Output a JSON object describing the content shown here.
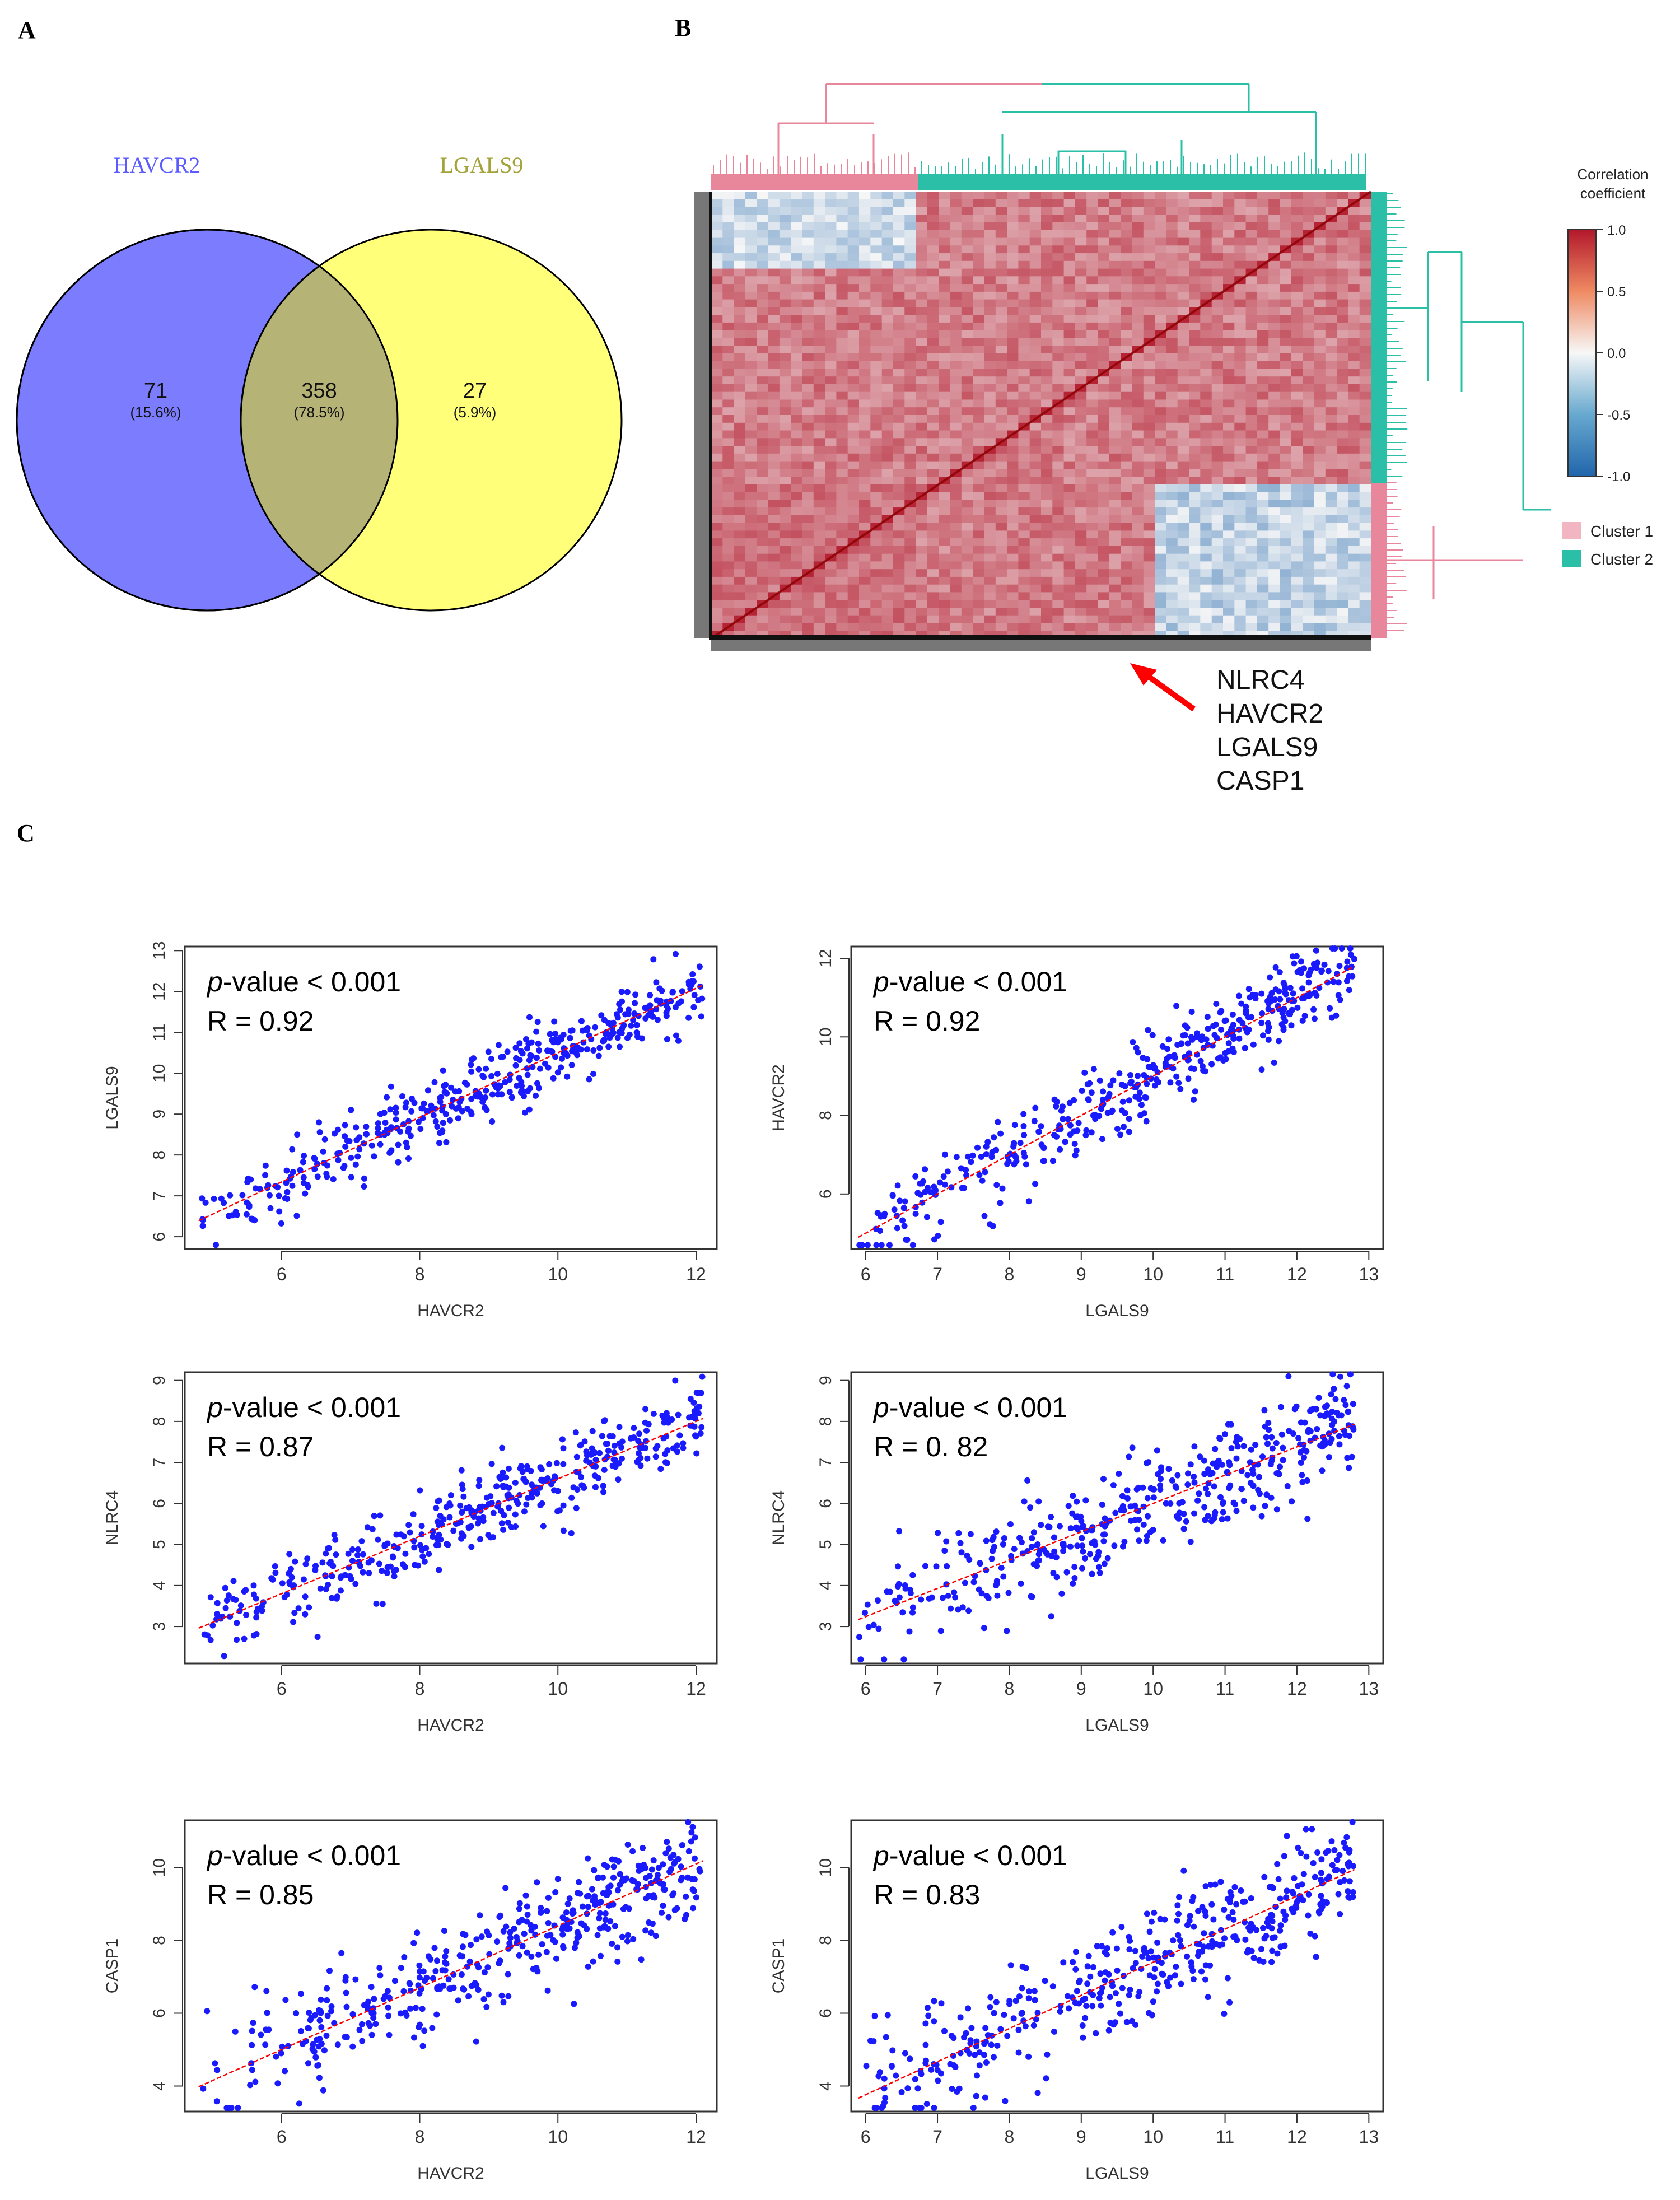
{
  "panels": {
    "a": "A",
    "b": "B",
    "c": "C"
  },
  "venn": {
    "left_label": "HAVCR2",
    "right_label": "LGALS9",
    "left_only": {
      "count": "71",
      "pct": "(15.6%)"
    },
    "overlap": {
      "count": "358",
      "pct": "(78.5%)"
    },
    "right_only": {
      "count": "27",
      "pct": "(5.9%)"
    },
    "colors": {
      "left": "#7c7cff",
      "right": "#ffff7a",
      "overlap": "#b5b376",
      "left_text": "#5b5bff",
      "right_text": "#a3a33a"
    }
  },
  "heatmap": {
    "legend_title_line1": "Correlation",
    "legend_title_line2": "coefficient",
    "scale_ticks": [
      "1.0",
      "0.5",
      "0.0",
      "-0.5",
      "-1.0"
    ],
    "clusters": [
      {
        "label": "Cluster 1",
        "color": "#f2b6c3"
      },
      {
        "label": "Cluster 2",
        "color": "#2bbfa7"
      }
    ],
    "highlighted_genes": [
      "NLRC4",
      "HAVCR2",
      "LGALS9",
      "CASP1"
    ],
    "colors": {
      "high": "#b2182b",
      "mid": "#f7f7f7",
      "low": "#2166ac",
      "arrow": "#ff0000",
      "dendro_pink": "#e8879c",
      "dendro_teal": "#2bbfa7"
    }
  },
  "chart_data": [
    {
      "type": "scatter",
      "title": "",
      "xlabel": "HAVCR2",
      "ylabel": "LGALS9",
      "xlim": [
        4.6,
        12.3
      ],
      "ylim": [
        5.7,
        13.1
      ],
      "xticks": [
        "6",
        "8",
        "10",
        "12"
      ],
      "yticks": [
        "6",
        "7",
        "8",
        "9",
        "10",
        "11",
        "12",
        "13"
      ],
      "pvalue_label": "p",
      "pvalue_text": "-value < 0.001",
      "r_text": "R = 0.92",
      "fit": {
        "slope": 0.79,
        "intercept": 2.6
      },
      "x_range": [
        4.8,
        12.1
      ],
      "spread": 0.42,
      "n": 430
    },
    {
      "type": "scatter",
      "title": "",
      "xlabel": "LGALS9",
      "ylabel": "HAVCR2",
      "xlim": [
        5.8,
        13.2
      ],
      "ylim": [
        4.6,
        12.3
      ],
      "xticks": [
        "6",
        "7",
        "8",
        "9",
        "10",
        "11",
        "12",
        "13"
      ],
      "yticks": [
        "6",
        "8",
        "10",
        "12"
      ],
      "pvalue_label": "p",
      "pvalue_text": "-value < 0.001",
      "r_text": "R = 0.92",
      "fit": {
        "slope": 1.0,
        "intercept": -1.0
      },
      "x_range": [
        5.9,
        12.8
      ],
      "spread": 0.5,
      "n": 430
    },
    {
      "type": "scatter",
      "title": "",
      "xlabel": "HAVCR2",
      "ylabel": "NLRC4",
      "xlim": [
        4.6,
        12.3
      ],
      "ylim": [
        2.1,
        9.2
      ],
      "xticks": [
        "6",
        "8",
        "10",
        "12"
      ],
      "yticks": [
        "3",
        "4",
        "5",
        "6",
        "7",
        "8",
        "9"
      ],
      "pvalue_label": "p",
      "pvalue_text": "-value < 0.001",
      "r_text": "R = 0.87",
      "fit": {
        "slope": 0.7,
        "intercept": -0.4
      },
      "x_range": [
        4.8,
        12.1
      ],
      "spread": 0.5,
      "n": 430
    },
    {
      "type": "scatter",
      "title": "",
      "xlabel": "LGALS9",
      "ylabel": "NLRC4",
      "xlim": [
        5.8,
        13.2
      ],
      "ylim": [
        2.1,
        9.2
      ],
      "xticks": [
        "6",
        "7",
        "8",
        "9",
        "10",
        "11",
        "12",
        "13"
      ],
      "yticks": [
        "3",
        "4",
        "5",
        "6",
        "7",
        "8",
        "9"
      ],
      "pvalue_label": "p",
      "pvalue_text": "-value < 0.001",
      "r_text": "R = 0. 82",
      "fit": {
        "slope": 0.69,
        "intercept": -0.9
      },
      "x_range": [
        5.9,
        12.8
      ],
      "spread": 0.65,
      "n": 430
    },
    {
      "type": "scatter",
      "title": "",
      "xlabel": "HAVCR2",
      "ylabel": "CASP1",
      "xlim": [
        4.6,
        12.3
      ],
      "ylim": [
        3.3,
        11.3
      ],
      "xticks": [
        "6",
        "8",
        "10",
        "12"
      ],
      "yticks": [
        "4",
        "6",
        "8",
        "10"
      ],
      "pvalue_label": "p",
      "pvalue_text": "-value < 0.001",
      "r_text": "R = 0.85",
      "fit": {
        "slope": 0.85,
        "intercept": -0.1
      },
      "x_range": [
        4.8,
        12.1
      ],
      "spread": 0.75,
      "n": 430
    },
    {
      "type": "scatter",
      "title": "",
      "xlabel": "LGALS9",
      "ylabel": "CASP1",
      "xlim": [
        5.8,
        13.2
      ],
      "ylim": [
        3.3,
        11.3
      ],
      "xticks": [
        "6",
        "7",
        "8",
        "9",
        "10",
        "11",
        "12",
        "13"
      ],
      "yticks": [
        "4",
        "6",
        "8",
        "10"
      ],
      "pvalue_label": "p",
      "pvalue_text": "-value < 0.001",
      "r_text": "R = 0.83",
      "fit": {
        "slope": 0.91,
        "intercept": -1.7
      },
      "x_range": [
        5.9,
        12.8
      ],
      "spread": 0.8,
      "n": 430
    }
  ],
  "colors": {
    "points": "#1a1aff",
    "fit": "#ff0000",
    "axis": "#333333"
  }
}
